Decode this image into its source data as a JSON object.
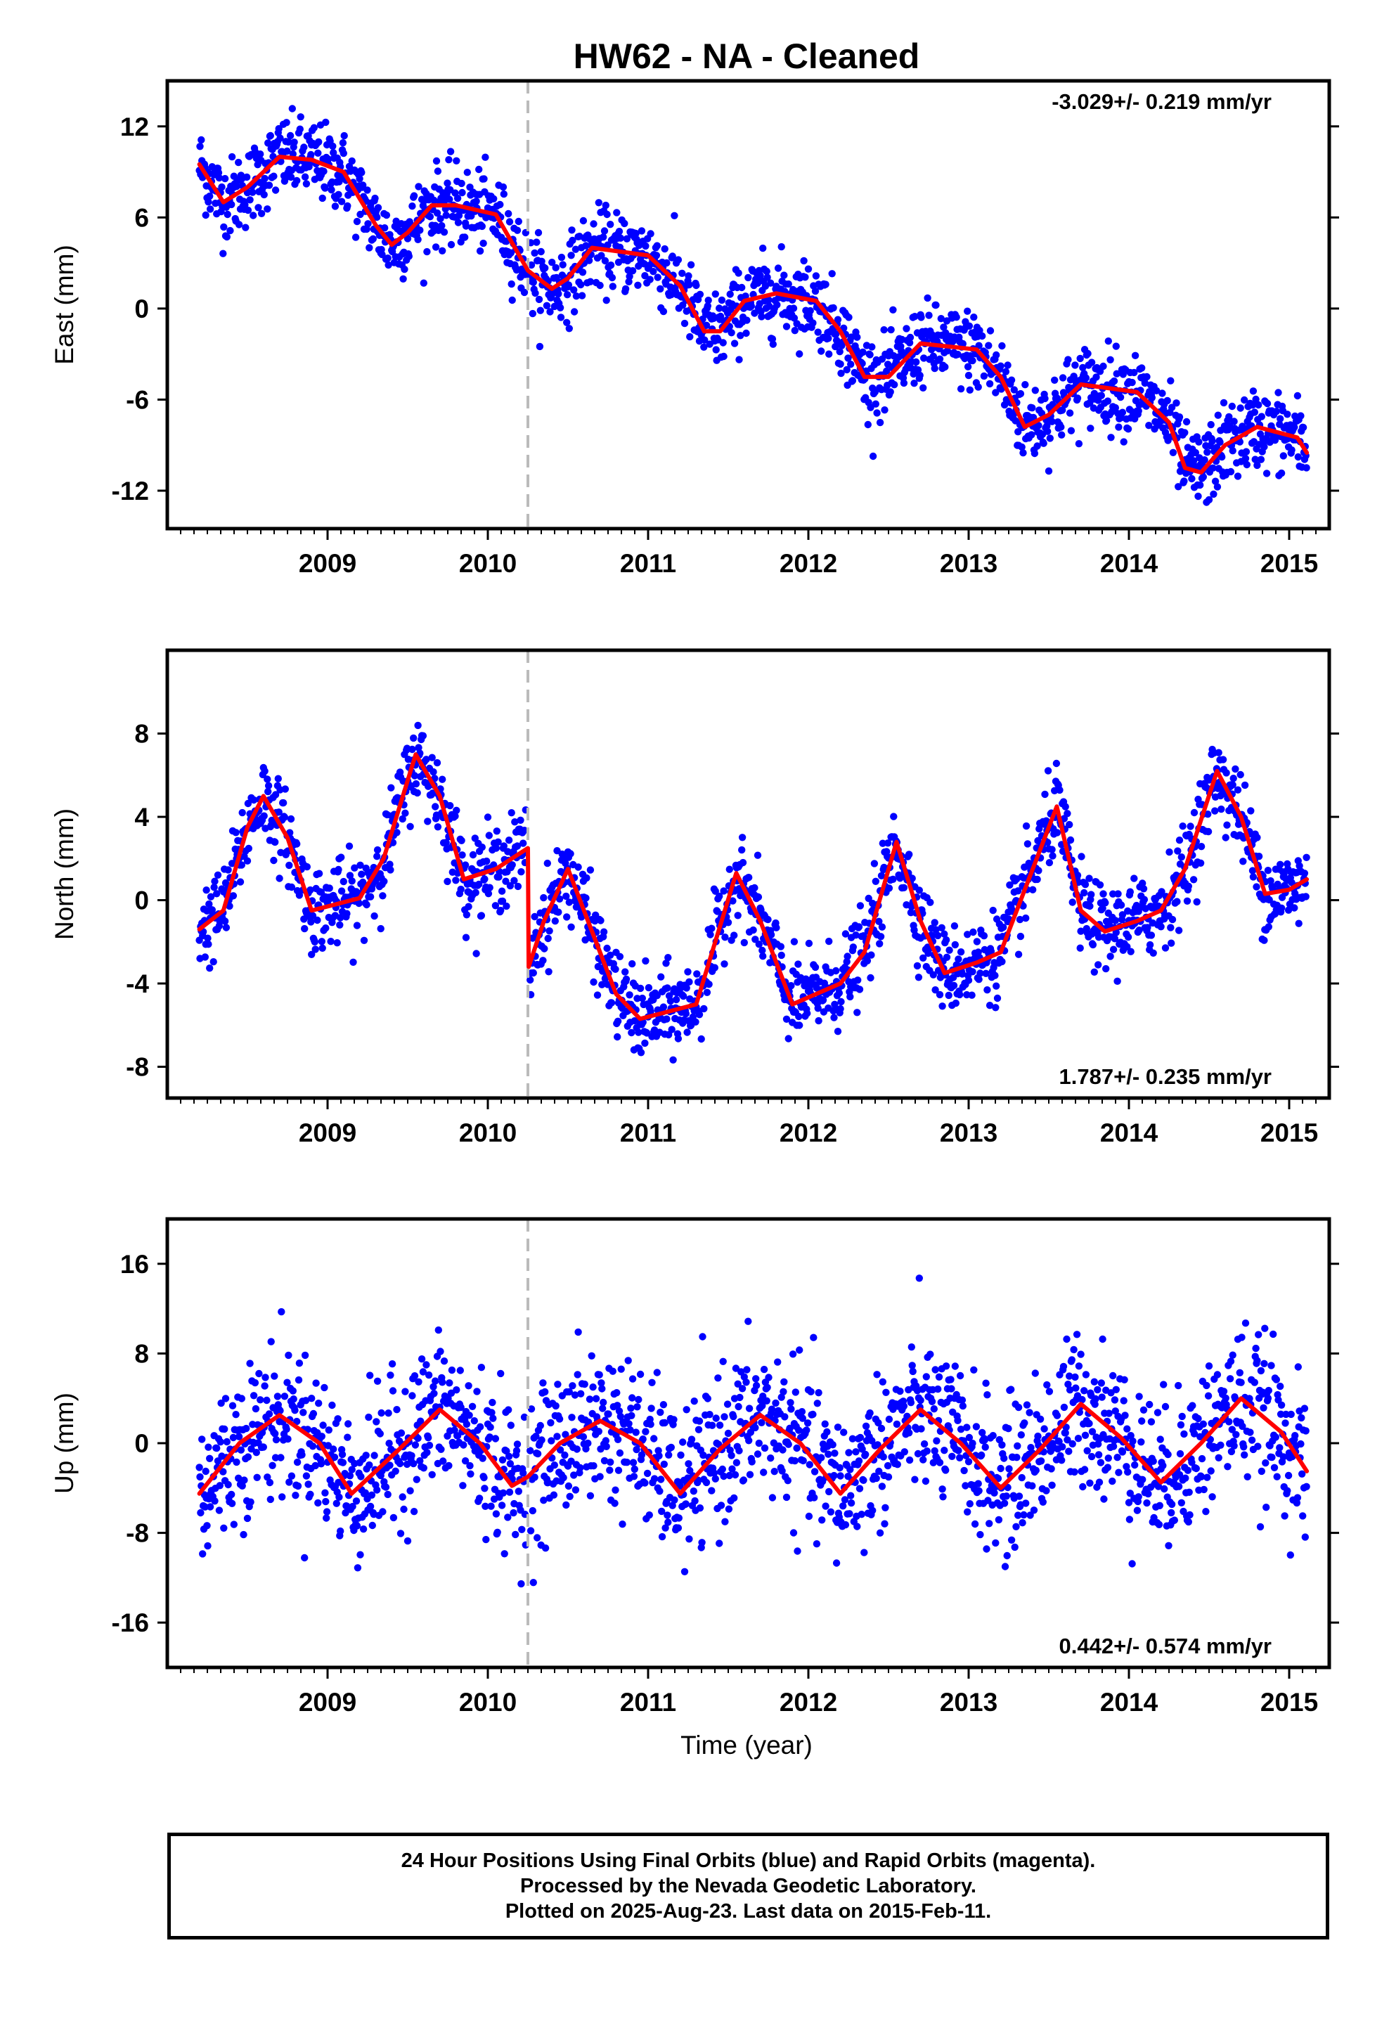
{
  "title": "HW62  - NA - Cleaned",
  "xlabel": "Time (year)",
  "colors": {
    "points": "#0000ff",
    "fit": "#ff0000",
    "event_line": "#bbbbbb",
    "axes": "#000000"
  },
  "footer": {
    "line1": "24 Hour Positions Using Final Orbits (blue) and Rapid Orbits (magenta).",
    "line2": "Processed by the Nevada Geodetic Laboratory.",
    "line3": "Plotted on 2025-Aug-23. Last data on 2015-Feb-11."
  },
  "chart_data": [
    {
      "type": "scatter",
      "ylabel": "East (mm)",
      "rate_label": "-3.029+/- 0.219 mm/yr",
      "rate_position": "top-right",
      "xlim": [
        2008.0,
        2015.25
      ],
      "ylim": [
        -14.5,
        15
      ],
      "xticks": [
        2009,
        2010,
        2011,
        2012,
        2013,
        2014,
        2015
      ],
      "yticks": [
        12,
        6,
        0,
        -6,
        -12
      ],
      "event_line_x": 2010.25,
      "x_range": [
        2008.2,
        2015.11
      ],
      "fit": {
        "x": [
          2008.2,
          2008.35,
          2008.5,
          2008.7,
          2008.9,
          2009.1,
          2009.3,
          2009.4,
          2009.5,
          2009.65,
          2009.8,
          2010.05,
          2010.25,
          2010.4,
          2010.5,
          2010.65,
          2011.0,
          2011.2,
          2011.35,
          2011.45,
          2011.6,
          2011.8,
          2012.05,
          2012.2,
          2012.35,
          2012.5,
          2012.7,
          2013.05,
          2013.2,
          2013.35,
          2013.5,
          2013.7,
          2014.05,
          2014.25,
          2014.35,
          2014.45,
          2014.6,
          2014.8,
          2015.05,
          2015.11
        ],
        "y": [
          9.5,
          7.0,
          8.0,
          10.0,
          9.8,
          9.0,
          5.5,
          4.2,
          5.0,
          6.8,
          6.8,
          6.2,
          2.5,
          1.3,
          2.0,
          4.0,
          3.5,
          1.5,
          -1.5,
          -1.5,
          0.5,
          1.0,
          0.5,
          -1.5,
          -4.5,
          -4.5,
          -2.3,
          -2.7,
          -4.5,
          -7.8,
          -7.0,
          -5.0,
          -5.5,
          -7.5,
          -10.5,
          -10.8,
          -9.0,
          -7.8,
          -8.5,
          -9.5
        ]
      },
      "noise_sd": 1.3
    },
    {
      "type": "scatter",
      "ylabel": "North (mm)",
      "rate_label": "1.787+/- 0.235 mm/yr",
      "rate_position": "bottom-right",
      "xlim": [
        2008.0,
        2015.25
      ],
      "ylim": [
        -9.5,
        12
      ],
      "xticks": [
        2009,
        2010,
        2011,
        2012,
        2013,
        2014,
        2015
      ],
      "yticks": [
        8,
        4,
        0,
        -4,
        -8
      ],
      "event_line_x": 2010.25,
      "x_range": [
        2008.2,
        2015.11
      ],
      "fit": {
        "x": [
          2008.2,
          2008.35,
          2008.5,
          2008.6,
          2008.75,
          2008.9,
          2009.05,
          2009.2,
          2009.35,
          2009.55,
          2009.7,
          2009.85,
          2010.05,
          2010.25,
          2010.255,
          2010.35,
          2010.5,
          2010.65,
          2010.8,
          2010.95,
          2011.15,
          2011.3,
          2011.55,
          2011.7,
          2011.9,
          2012.05,
          2012.2,
          2012.35,
          2012.55,
          2012.7,
          2012.85,
          2013.05,
          2013.2,
          2013.35,
          2013.55,
          2013.7,
          2013.85,
          2014.05,
          2014.2,
          2014.35,
          2014.55,
          2014.7,
          2014.85,
          2015.0,
          2015.11
        ],
        "y": [
          -1.4,
          -0.5,
          3.5,
          5.0,
          3.0,
          -0.5,
          -0.2,
          0.1,
          2.0,
          7.0,
          5.0,
          1.0,
          1.5,
          2.5,
          -3.2,
          -1.0,
          1.5,
          -1.5,
          -4.5,
          -5.7,
          -5.3,
          -5.0,
          1.3,
          -1.0,
          -5.0,
          -4.5,
          -4.0,
          -2.5,
          2.8,
          -1.0,
          -3.5,
          -3.0,
          -2.5,
          0.5,
          4.5,
          -0.5,
          -1.5,
          -1.0,
          -0.5,
          1.5,
          6.2,
          4.0,
          0.3,
          0.5,
          1.0
        ]
      },
      "noise_sd": 1.0
    },
    {
      "type": "scatter",
      "ylabel": "Up (mm)",
      "rate_label": "0.442+/- 0.574 mm/yr",
      "rate_position": "bottom-right",
      "xlim": [
        2008.0,
        2015.25
      ],
      "ylim": [
        -20,
        20
      ],
      "xticks": [
        2009,
        2010,
        2011,
        2012,
        2013,
        2014,
        2015
      ],
      "yticks": [
        16,
        8,
        0,
        -8,
        -16
      ],
      "event_line_x": 2010.25,
      "x_range": [
        2008.2,
        2015.11
      ],
      "fit": {
        "x": [
          2008.2,
          2008.45,
          2008.7,
          2008.95,
          2009.15,
          2009.45,
          2009.7,
          2009.95,
          2010.15,
          2010.25,
          2010.45,
          2010.7,
          2010.95,
          2011.2,
          2011.45,
          2011.7,
          2011.95,
          2012.2,
          2012.45,
          2012.7,
          2012.95,
          2013.2,
          2013.45,
          2013.7,
          2013.95,
          2014.2,
          2014.45,
          2014.7,
          2014.95,
          2015.11
        ],
        "y": [
          -4.5,
          0.0,
          2.5,
          0.0,
          -4.5,
          -0.5,
          3.0,
          0.0,
          -3.8,
          -3.0,
          0.0,
          2.0,
          0.0,
          -4.5,
          -0.5,
          2.5,
          0.0,
          -4.5,
          -0.5,
          3.0,
          0.0,
          -4.0,
          -0.5,
          3.5,
          0.5,
          -3.5,
          0.0,
          4.0,
          1.0,
          -2.5
        ]
      },
      "noise_sd": 3.3
    }
  ]
}
